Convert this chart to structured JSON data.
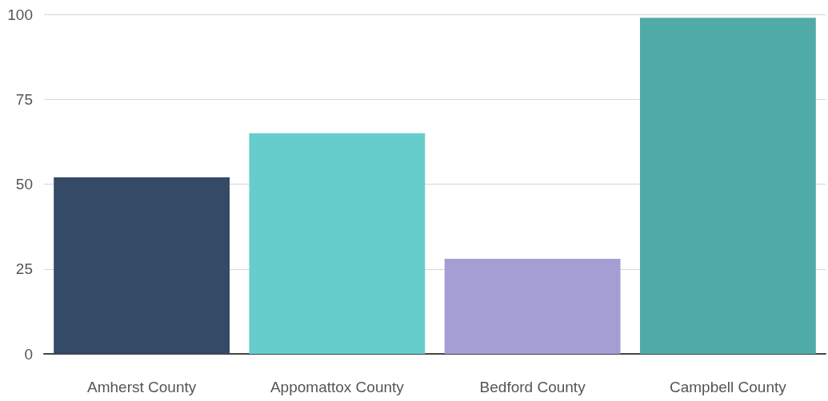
{
  "chart_data": {
    "type": "bar",
    "categories": [
      "Amherst County",
      "Appomattox County",
      "Bedford County",
      "Campbell County"
    ],
    "values": [
      52,
      65,
      28,
      99
    ],
    "colors": [
      "#344a66",
      "#67cdcc",
      "#a39ed4",
      "#50aaa8"
    ],
    "ylim": [
      0,
      100
    ],
    "yticks": [
      0,
      25,
      50,
      75,
      100
    ],
    "grid": "y"
  }
}
